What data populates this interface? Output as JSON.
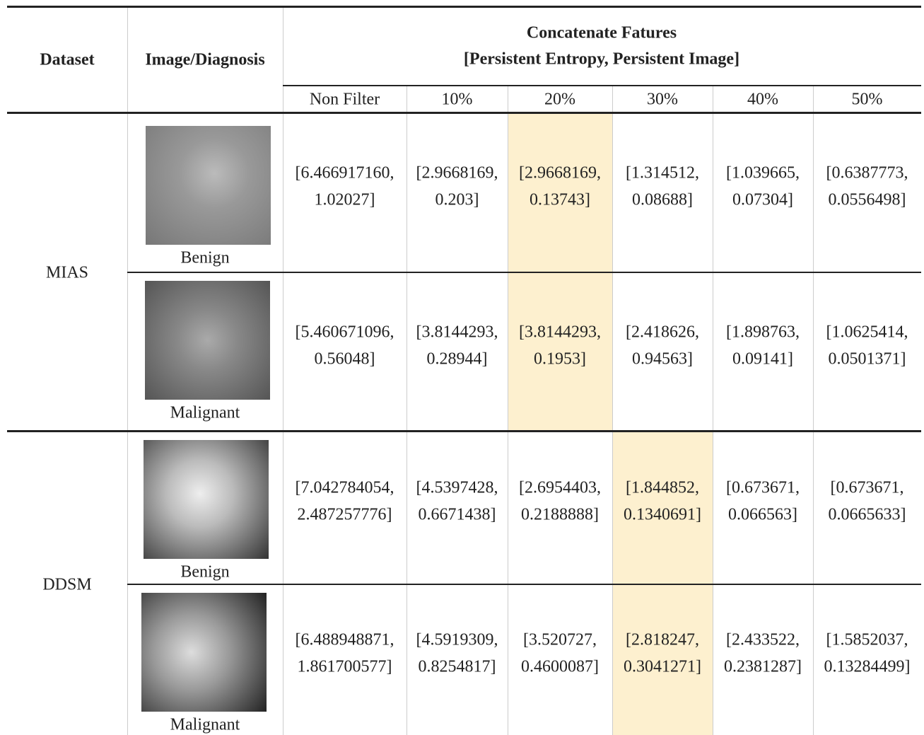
{
  "header": {
    "dataset": "Dataset",
    "image_diagnosis": "Image/Diagnosis",
    "group_title": [
      "Concatenate Fatures",
      "[Persistent Entropy, Persistent Image]"
    ],
    "columns": [
      "Non Filter",
      "10%",
      "20%",
      "30%",
      "40%",
      "50%"
    ]
  },
  "groups": [
    {
      "name": "MIAS",
      "rows": [
        {
          "diagnosis": "Benign",
          "cells": [
            [
              "[6.466917160,",
              "1.02027]"
            ],
            [
              "[2.9668169,",
              "0.203]"
            ],
            [
              "[2.9668169,",
              "0.13743]"
            ],
            [
              "[1.314512,",
              "0.08688]"
            ],
            [
              "[1.039665,",
              "0.07304]"
            ],
            [
              "[0.6387773,",
              "0.0556498]"
            ]
          ]
        },
        {
          "diagnosis": "Malignant",
          "cells": [
            [
              "[5.460671096,",
              "0.56048]"
            ],
            [
              "[3.8144293,",
              "0.28944]"
            ],
            [
              "[3.8144293,",
              "0.1953]"
            ],
            [
              "[2.418626,",
              "0.94563]"
            ],
            [
              "[1.898763,",
              "0.09141]"
            ],
            [
              "[1.0625414,",
              "0.0501371]"
            ]
          ]
        }
      ]
    },
    {
      "name": "DDSM",
      "rows": [
        {
          "diagnosis": "Benign",
          "cells": [
            [
              "[7.042784054,",
              "2.487257776]"
            ],
            [
              "[4.5397428,",
              "0.6671438]"
            ],
            [
              "[2.6954403,",
              "0.2188888]"
            ],
            [
              "[1.844852,",
              "0.1340691]"
            ],
            [
              "[0.673671,",
              "0.066563]"
            ],
            [
              "[0.673671,",
              "0.0665633]"
            ]
          ]
        },
        {
          "diagnosis": "Malignant",
          "cells": [
            [
              "[6.488948871,",
              "1.861700577]"
            ],
            [
              "[4.5919309,",
              "0.8254817]"
            ],
            [
              "[3.520727,",
              "0.4600087]"
            ],
            [
              "[2.818247,",
              "0.3041271]"
            ],
            [
              "[2.433522,",
              "0.2381287]"
            ],
            [
              "[1.5852037,",
              "0.13284499]"
            ]
          ]
        }
      ]
    }
  ]
}
